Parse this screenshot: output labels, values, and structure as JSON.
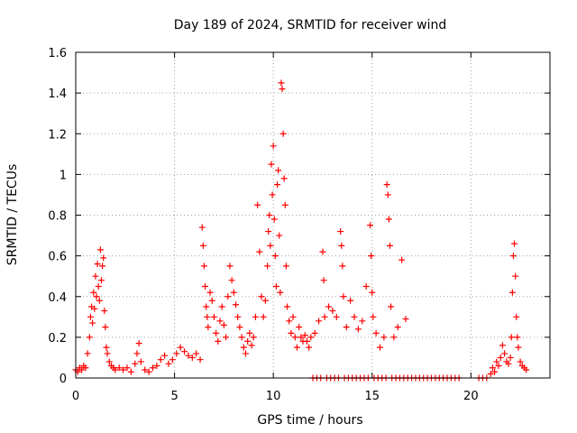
{
  "chart_data": {
    "type": "scatter",
    "title": "Day 189 of 2024, SRMTID for receiver wind",
    "xlabel": "GPS time / hours",
    "ylabel": "SRMTID / TECUs",
    "xlim": [
      0,
      24
    ],
    "ylim": [
      0,
      1.6
    ],
    "xticks": [
      0,
      5,
      10,
      15,
      20
    ],
    "xtick_labels": [
      "0",
      "5",
      "10",
      "15",
      "20"
    ],
    "yticks": [
      0,
      0.2,
      0.4,
      0.6,
      0.8,
      1,
      1.2,
      1.4,
      1.6
    ],
    "ytick_labels": [
      "0",
      "0.2",
      "0.4",
      "0.6",
      "0.8",
      "1",
      "1.2",
      "1.4",
      "1.6"
    ],
    "grid": true,
    "marker": "plus",
    "color": "#ff0000",
    "series": [
      {
        "name": "SRMTID",
        "points": [
          [
            0.0,
            0.04
          ],
          [
            0.1,
            0.03
          ],
          [
            0.2,
            0.05
          ],
          [
            0.3,
            0.04
          ],
          [
            0.4,
            0.06
          ],
          [
            0.5,
            0.05
          ],
          [
            0.6,
            0.12
          ],
          [
            0.7,
            0.2
          ],
          [
            0.75,
            0.3
          ],
          [
            0.8,
            0.35
          ],
          [
            0.85,
            0.27
          ],
          [
            0.9,
            0.42
          ],
          [
            0.95,
            0.34
          ],
          [
            1.0,
            0.5
          ],
          [
            1.05,
            0.4
          ],
          [
            1.1,
            0.56
          ],
          [
            1.15,
            0.45
          ],
          [
            1.2,
            0.38
          ],
          [
            1.25,
            0.63
          ],
          [
            1.3,
            0.48
          ],
          [
            1.35,
            0.55
          ],
          [
            1.4,
            0.59
          ],
          [
            1.45,
            0.33
          ],
          [
            1.5,
            0.25
          ],
          [
            1.55,
            0.15
          ],
          [
            1.6,
            0.12
          ],
          [
            1.7,
            0.08
          ],
          [
            1.8,
            0.06
          ],
          [
            1.9,
            0.05
          ],
          [
            2.0,
            0.04
          ],
          [
            2.2,
            0.05
          ],
          [
            2.4,
            0.04
          ],
          [
            2.6,
            0.05
          ],
          [
            2.8,
            0.03
          ],
          [
            3.0,
            0.07
          ],
          [
            3.1,
            0.12
          ],
          [
            3.2,
            0.17
          ],
          [
            3.3,
            0.08
          ],
          [
            3.5,
            0.04
          ],
          [
            3.7,
            0.03
          ],
          [
            3.9,
            0.05
          ],
          [
            4.1,
            0.06
          ],
          [
            4.3,
            0.09
          ],
          [
            4.5,
            0.11
          ],
          [
            4.7,
            0.07
          ],
          [
            4.9,
            0.09
          ],
          [
            5.1,
            0.12
          ],
          [
            5.3,
            0.15
          ],
          [
            5.5,
            0.13
          ],
          [
            5.7,
            0.11
          ],
          [
            5.9,
            0.1
          ],
          [
            6.1,
            0.12
          ],
          [
            6.3,
            0.09
          ],
          [
            6.4,
            0.74
          ],
          [
            6.45,
            0.65
          ],
          [
            6.5,
            0.55
          ],
          [
            6.55,
            0.45
          ],
          [
            6.6,
            0.35
          ],
          [
            6.65,
            0.3
          ],
          [
            6.7,
            0.25
          ],
          [
            6.8,
            0.42
          ],
          [
            6.9,
            0.38
          ],
          [
            7.0,
            0.3
          ],
          [
            7.1,
            0.22
          ],
          [
            7.2,
            0.18
          ],
          [
            7.3,
            0.28
          ],
          [
            7.4,
            0.35
          ],
          [
            7.5,
            0.26
          ],
          [
            7.6,
            0.2
          ],
          [
            7.7,
            0.4
          ],
          [
            7.8,
            0.55
          ],
          [
            7.9,
            0.48
          ],
          [
            8.0,
            0.42
          ],
          [
            8.1,
            0.36
          ],
          [
            8.2,
            0.3
          ],
          [
            8.3,
            0.25
          ],
          [
            8.4,
            0.2
          ],
          [
            8.5,
            0.15
          ],
          [
            8.6,
            0.12
          ],
          [
            8.7,
            0.18
          ],
          [
            8.8,
            0.22
          ],
          [
            8.9,
            0.16
          ],
          [
            9.0,
            0.2
          ],
          [
            9.1,
            0.3
          ],
          [
            9.2,
            0.85
          ],
          [
            9.3,
            0.62
          ],
          [
            9.4,
            0.4
          ],
          [
            9.5,
            0.3
          ],
          [
            9.6,
            0.38
          ],
          [
            9.7,
            0.55
          ],
          [
            9.75,
            0.72
          ],
          [
            9.8,
            0.8
          ],
          [
            9.85,
            0.65
          ],
          [
            9.9,
            1.05
          ],
          [
            9.95,
            0.9
          ],
          [
            10.0,
            1.14
          ],
          [
            10.05,
            0.78
          ],
          [
            10.1,
            0.6
          ],
          [
            10.15,
            0.45
          ],
          [
            10.2,
            0.95
          ],
          [
            10.25,
            1.02
          ],
          [
            10.3,
            0.7
          ],
          [
            10.35,
            0.42
          ],
          [
            10.4,
            1.45
          ],
          [
            10.45,
            1.42
          ],
          [
            10.5,
            1.2
          ],
          [
            10.55,
            0.98
          ],
          [
            10.6,
            0.85
          ],
          [
            10.65,
            0.55
          ],
          [
            10.7,
            0.35
          ],
          [
            10.8,
            0.28
          ],
          [
            10.9,
            0.22
          ],
          [
            11.0,
            0.3
          ],
          [
            11.1,
            0.2
          ],
          [
            11.2,
            0.15
          ],
          [
            11.3,
            0.25
          ],
          [
            11.4,
            0.2
          ],
          [
            11.5,
            0.18
          ],
          [
            11.6,
            0.21
          ],
          [
            11.7,
            0.18
          ],
          [
            11.8,
            0.15
          ],
          [
            11.9,
            0.2
          ],
          [
            12.0,
            0.0
          ],
          [
            12.1,
            0.22
          ],
          [
            12.2,
            0.0
          ],
          [
            12.3,
            0.28
          ],
          [
            12.4,
            0.0
          ],
          [
            12.5,
            0.62
          ],
          [
            12.55,
            0.48
          ],
          [
            12.6,
            0.3
          ],
          [
            12.7,
            0.0
          ],
          [
            12.8,
            0.35
          ],
          [
            12.9,
            0.0
          ],
          [
            13.0,
            0.33
          ],
          [
            13.1,
            0.0
          ],
          [
            13.2,
            0.3
          ],
          [
            13.3,
            0.0
          ],
          [
            13.4,
            0.72
          ],
          [
            13.45,
            0.65
          ],
          [
            13.5,
            0.55
          ],
          [
            13.55,
            0.4
          ],
          [
            13.6,
            0.0
          ],
          [
            13.7,
            0.25
          ],
          [
            13.8,
            0.0
          ],
          [
            13.9,
            0.38
          ],
          [
            14.0,
            0.0
          ],
          [
            14.1,
            0.3
          ],
          [
            14.2,
            0.0
          ],
          [
            14.3,
            0.24
          ],
          [
            14.4,
            0.0
          ],
          [
            14.5,
            0.28
          ],
          [
            14.6,
            0.0
          ],
          [
            14.7,
            0.45
          ],
          [
            14.8,
            0.0
          ],
          [
            14.9,
            0.75
          ],
          [
            14.95,
            0.6
          ],
          [
            15.0,
            0.42
          ],
          [
            15.05,
            0.3
          ],
          [
            15.1,
            0.0
          ],
          [
            15.2,
            0.22
          ],
          [
            15.3,
            0.0
          ],
          [
            15.4,
            0.15
          ],
          [
            15.5,
            0.0
          ],
          [
            15.6,
            0.2
          ],
          [
            15.7,
            0.0
          ],
          [
            15.75,
            0.95
          ],
          [
            15.8,
            0.9
          ],
          [
            15.85,
            0.78
          ],
          [
            15.9,
            0.65
          ],
          [
            15.95,
            0.35
          ],
          [
            16.0,
            0.0
          ],
          [
            16.1,
            0.2
          ],
          [
            16.2,
            0.0
          ],
          [
            16.3,
            0.25
          ],
          [
            16.4,
            0.0
          ],
          [
            16.5,
            0.58
          ],
          [
            16.6,
            0.0
          ],
          [
            16.7,
            0.29
          ],
          [
            16.8,
            0.0
          ],
          [
            17.0,
            0.0
          ],
          [
            17.2,
            0.0
          ],
          [
            17.4,
            0.0
          ],
          [
            17.6,
            0.0
          ],
          [
            17.8,
            0.0
          ],
          [
            18.0,
            0.0
          ],
          [
            18.2,
            0.0
          ],
          [
            18.4,
            0.0
          ],
          [
            18.6,
            0.0
          ],
          [
            18.8,
            0.0
          ],
          [
            19.0,
            0.0
          ],
          [
            19.2,
            0.0
          ],
          [
            19.4,
            0.0
          ],
          [
            20.4,
            0.0
          ],
          [
            20.6,
            0.0
          ],
          [
            20.8,
            0.0
          ],
          [
            21.0,
            0.02
          ],
          [
            21.1,
            0.05
          ],
          [
            21.2,
            0.03
          ],
          [
            21.3,
            0.08
          ],
          [
            21.4,
            0.06
          ],
          [
            21.5,
            0.1
          ],
          [
            21.6,
            0.16
          ],
          [
            21.7,
            0.12
          ],
          [
            21.8,
            0.08
          ],
          [
            21.9,
            0.07
          ],
          [
            22.0,
            0.1
          ],
          [
            22.05,
            0.2
          ],
          [
            22.1,
            0.42
          ],
          [
            22.15,
            0.6
          ],
          [
            22.2,
            0.66
          ],
          [
            22.25,
            0.5
          ],
          [
            22.3,
            0.3
          ],
          [
            22.35,
            0.2
          ],
          [
            22.4,
            0.15
          ],
          [
            22.5,
            0.08
          ],
          [
            22.6,
            0.06
          ],
          [
            22.7,
            0.05
          ],
          [
            22.8,
            0.04
          ]
        ]
      }
    ]
  }
}
